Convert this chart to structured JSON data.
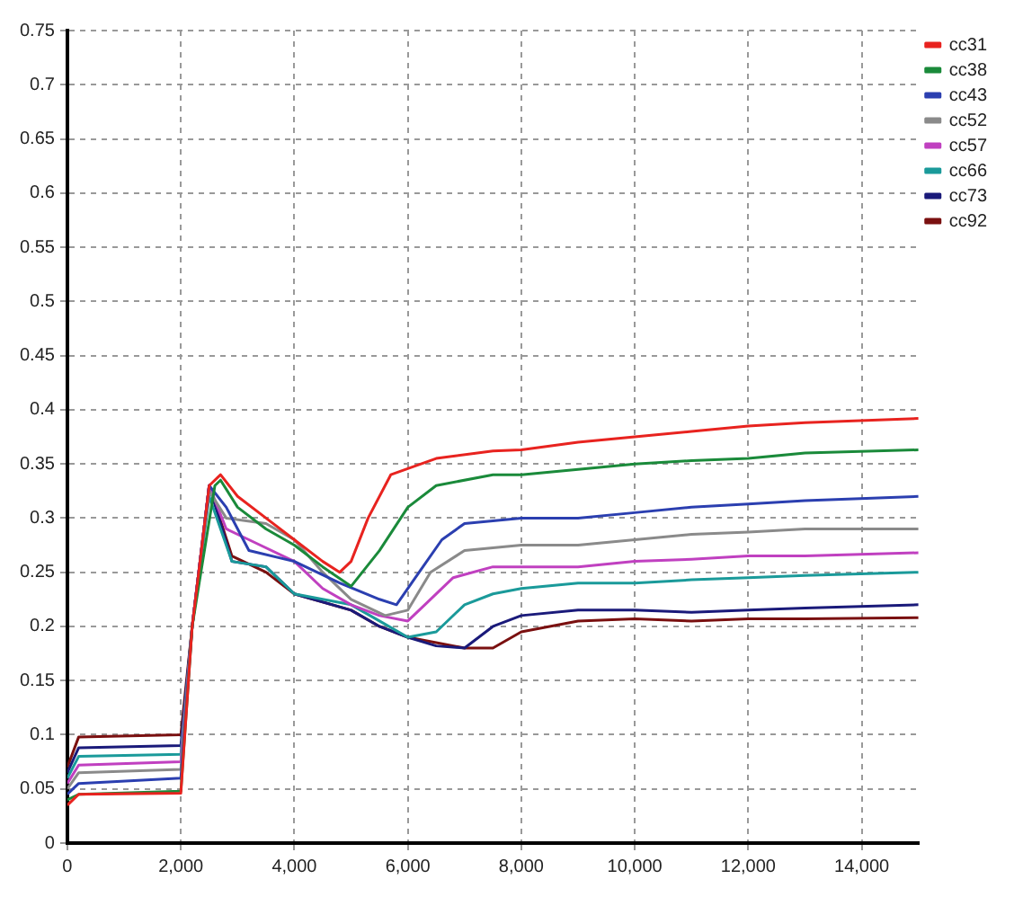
{
  "chart_data": {
    "type": "line",
    "xlim": [
      0,
      15000
    ],
    "ylim": [
      0,
      0.75
    ],
    "xticks": [
      {
        "value": 0,
        "label": "0"
      },
      {
        "value": 2000,
        "label": "2,000"
      },
      {
        "value": 4000,
        "label": "4,000"
      },
      {
        "value": 6000,
        "label": "6,000"
      },
      {
        "value": 8000,
        "label": "8,000"
      },
      {
        "value": 10000,
        "label": "10,000"
      },
      {
        "value": 12000,
        "label": "12,000"
      },
      {
        "value": 14000,
        "label": "14,000"
      }
    ],
    "yticks": [
      0,
      0.05,
      0.1,
      0.15,
      0.2,
      0.25,
      0.3,
      0.35,
      0.4,
      0.45,
      0.5,
      0.55,
      0.6,
      0.65,
      0.7,
      0.75
    ],
    "grid": true,
    "legend": "right",
    "line_style": "solid",
    "series": [
      {
        "name": "cc31",
        "color": "#e8231f",
        "x": [
          0,
          200,
          2000,
          2200,
          2500,
          2700,
          3000,
          3500,
          4000,
          4500,
          4800,
          5000,
          5300,
          5700,
          6500,
          7500,
          8000,
          9000,
          10000,
          11000,
          12000,
          13000,
          15000
        ],
        "values": [
          0.035,
          0.045,
          0.046,
          0.2,
          0.33,
          0.34,
          0.32,
          0.3,
          0.28,
          0.26,
          0.25,
          0.26,
          0.3,
          0.34,
          0.355,
          0.362,
          0.363,
          0.37,
          0.375,
          0.38,
          0.385,
          0.388,
          0.392
        ]
      },
      {
        "name": "cc38",
        "color": "#1a8a3a",
        "x": [
          0,
          200,
          2000,
          2200,
          2600,
          2700,
          3000,
          3500,
          4000,
          4500,
          5000,
          5500,
          6000,
          6500,
          7500,
          8000,
          9000,
          10000,
          11000,
          12000,
          13000,
          15000
        ],
        "values": [
          0.04,
          0.045,
          0.048,
          0.2,
          0.33,
          0.335,
          0.31,
          0.29,
          0.275,
          0.255,
          0.237,
          0.27,
          0.31,
          0.33,
          0.34,
          0.34,
          0.345,
          0.35,
          0.353,
          0.355,
          0.36,
          0.363
        ]
      },
      {
        "name": "cc43",
        "color": "#2b3fb0",
        "x": [
          0,
          200,
          2000,
          2200,
          2500,
          2800,
          3200,
          4000,
          4800,
          5500,
          5800,
          6200,
          6600,
          7000,
          8000,
          9000,
          10000,
          11000,
          12000,
          13000,
          15000
        ],
        "values": [
          0.045,
          0.055,
          0.06,
          0.2,
          0.33,
          0.31,
          0.27,
          0.26,
          0.24,
          0.225,
          0.22,
          0.25,
          0.28,
          0.295,
          0.3,
          0.3,
          0.305,
          0.31,
          0.313,
          0.316,
          0.32
        ]
      },
      {
        "name": "cc52",
        "color": "#8a8a8a",
        "x": [
          0,
          200,
          2000,
          2200,
          2500,
          2800,
          3500,
          4000,
          4500,
          5000,
          5600,
          6000,
          6400,
          7000,
          8000,
          9000,
          10000,
          11000,
          12000,
          13000,
          15000
        ],
        "values": [
          0.05,
          0.065,
          0.068,
          0.2,
          0.325,
          0.3,
          0.295,
          0.28,
          0.25,
          0.225,
          0.21,
          0.215,
          0.25,
          0.27,
          0.275,
          0.275,
          0.28,
          0.285,
          0.287,
          0.29,
          0.29
        ]
      },
      {
        "name": "cc57",
        "color": "#c040c0",
        "x": [
          0,
          200,
          2000,
          2200,
          2500,
          2800,
          3200,
          4000,
          4500,
          5000,
          5500,
          6000,
          6300,
          6800,
          7500,
          8000,
          9000,
          10000,
          11000,
          12000,
          13000,
          15000
        ],
        "values": [
          0.055,
          0.072,
          0.075,
          0.2,
          0.33,
          0.29,
          0.28,
          0.26,
          0.235,
          0.22,
          0.21,
          0.205,
          0.22,
          0.245,
          0.255,
          0.255,
          0.255,
          0.26,
          0.262,
          0.265,
          0.265,
          0.268
        ]
      },
      {
        "name": "cc66",
        "color": "#1a9a9a",
        "x": [
          0,
          200,
          2000,
          2200,
          2500,
          2900,
          3500,
          4000,
          5000,
          5500,
          6000,
          6500,
          7000,
          7500,
          8000,
          9000,
          10000,
          11000,
          12000,
          13000,
          15000
        ],
        "values": [
          0.06,
          0.08,
          0.082,
          0.2,
          0.32,
          0.26,
          0.255,
          0.23,
          0.22,
          0.205,
          0.19,
          0.195,
          0.22,
          0.23,
          0.235,
          0.24,
          0.24,
          0.243,
          0.245,
          0.247,
          0.25
        ]
      },
      {
        "name": "cc73",
        "color": "#1a1a7a",
        "x": [
          0,
          200,
          2000,
          2200,
          2500,
          2900,
          3500,
          4000,
          5000,
          5500,
          6000,
          6500,
          7000,
          7500,
          8000,
          9000,
          10000,
          11000,
          12000,
          13000,
          15000
        ],
        "values": [
          0.065,
          0.088,
          0.09,
          0.2,
          0.33,
          0.26,
          0.255,
          0.23,
          0.215,
          0.2,
          0.19,
          0.182,
          0.18,
          0.2,
          0.21,
          0.215,
          0.215,
          0.213,
          0.215,
          0.217,
          0.22
        ]
      },
      {
        "name": "cc92",
        "color": "#7a1010",
        "x": [
          0,
          200,
          2000,
          2200,
          2500,
          2900,
          3500,
          4000,
          5000,
          5500,
          6000,
          6500,
          7000,
          7500,
          8000,
          9000,
          10000,
          11000,
          12000,
          13000,
          15000
        ],
        "values": [
          0.07,
          0.098,
          0.1,
          0.2,
          0.33,
          0.265,
          0.25,
          0.23,
          0.215,
          0.2,
          0.19,
          0.185,
          0.18,
          0.18,
          0.195,
          0.205,
          0.207,
          0.205,
          0.207,
          0.207,
          0.208
        ]
      }
    ]
  }
}
